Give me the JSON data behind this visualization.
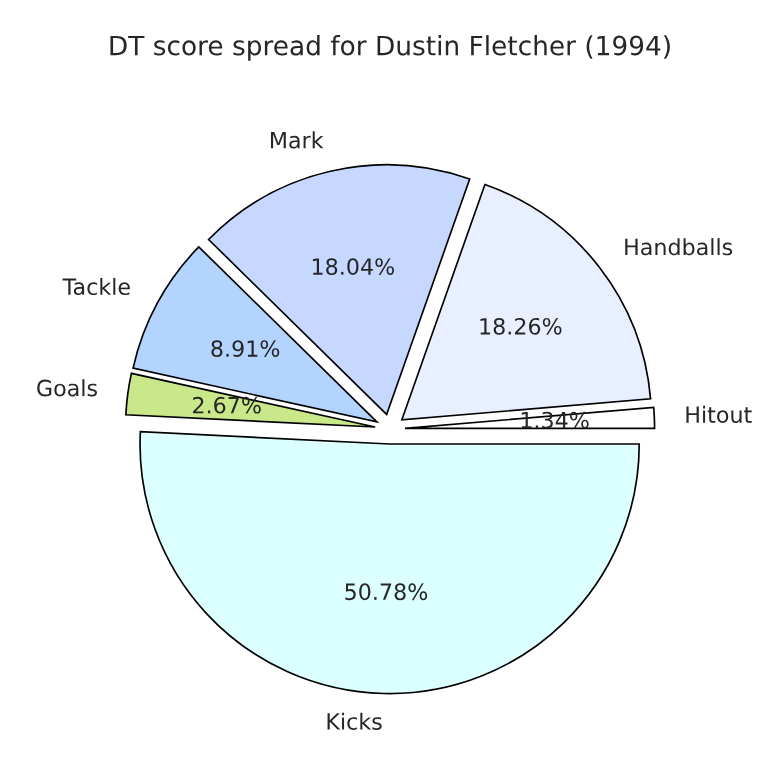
{
  "chart_data": {
    "type": "pie",
    "title": "DT score spread for Dustin Fletcher (1994)",
    "categories": [
      "Hitout",
      "Handballs",
      "Mark",
      "Tackle",
      "Goals",
      "Kicks"
    ],
    "values": [
      1.34,
      18.26,
      18.04,
      8.91,
      2.67,
      50.78
    ],
    "value_labels": [
      "1.34%",
      "18.26%",
      "18.04%",
      "8.91%",
      "2.67%",
      "50.78%"
    ],
    "colors": [
      "#ffffff",
      "#e8f0ff",
      "#c6d8ff",
      "#b3d4ff",
      "#c9e88a",
      "#dcffff"
    ]
  }
}
